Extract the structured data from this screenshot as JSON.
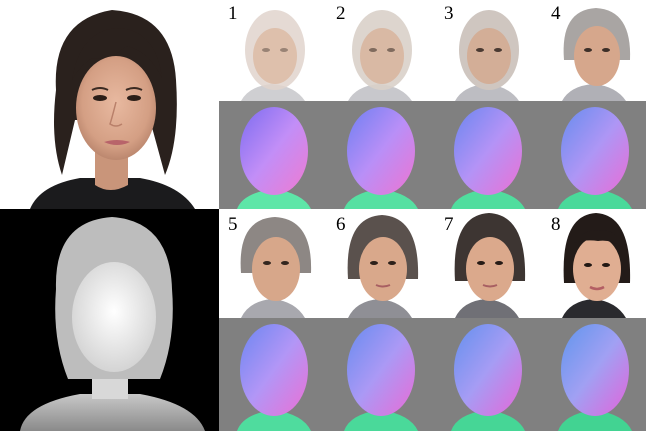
{
  "figure": {
    "step_labels": [
      "1",
      "2",
      "3",
      "4",
      "5",
      "6",
      "7",
      "8"
    ]
  },
  "colors": {
    "normal_background": "#808080",
    "depth_background": "#000000",
    "page_background": "#ffffff"
  }
}
